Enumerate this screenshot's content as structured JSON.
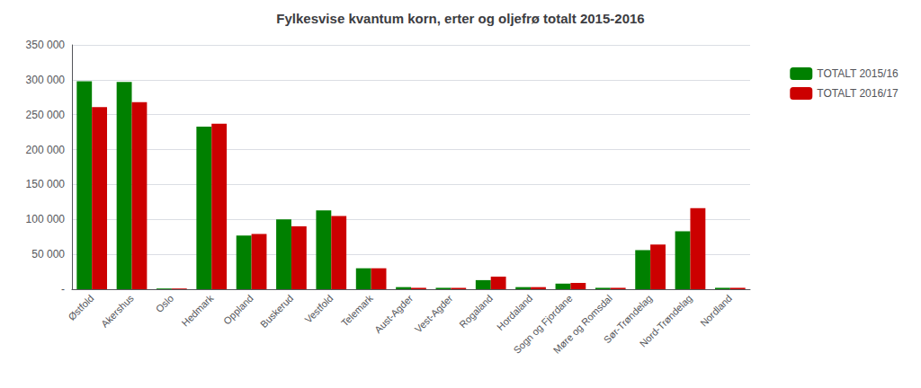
{
  "chart_data": {
    "type": "bar",
    "title": "Fylkesvise kvantum korn, erter og oljefrø totalt 2015-2016",
    "categories": [
      "Østfold",
      "Akershus",
      "Oslo",
      "Hedmark",
      "Oppland",
      "Buskerud",
      "Vestfold",
      "Telemark",
      "Aust-Agder",
      "Vest-Agder",
      "Rogaland",
      "Hordaland",
      "Sogn og Fjordane",
      "Møre og Romsdal",
      "Sør-Trøndelag",
      "Nord-Trøndelag",
      "Nordland"
    ],
    "series": [
      {
        "name": "TOTALT 2015/16",
        "color": "#008000",
        "values": [
          298000,
          297000,
          1000,
          233000,
          77000,
          100000,
          113000,
          30000,
          3000,
          2000,
          13000,
          3000,
          8000,
          2000,
          56000,
          83000,
          2000
        ]
      },
      {
        "name": "TOTALT 2016/17",
        "color": "#cc0000",
        "values": [
          261000,
          268000,
          1000,
          237000,
          79000,
          90000,
          105000,
          30000,
          2000,
          2000,
          18000,
          3000,
          9000,
          2000,
          64000,
          116000,
          2000
        ]
      }
    ],
    "ylim": [
      0,
      350000
    ],
    "yticks": [
      {
        "value": 0,
        "label": "-"
      },
      {
        "value": 50000,
        "label": "50 000"
      },
      {
        "value": 100000,
        "label": "100 000"
      },
      {
        "value": 150000,
        "label": "150 000"
      },
      {
        "value": 200000,
        "label": "200 000"
      },
      {
        "value": 250000,
        "label": "250 000"
      },
      {
        "value": 300000,
        "label": "300 000"
      },
      {
        "value": 350000,
        "label": "350 000"
      }
    ],
    "grid": true,
    "legend": "right"
  }
}
